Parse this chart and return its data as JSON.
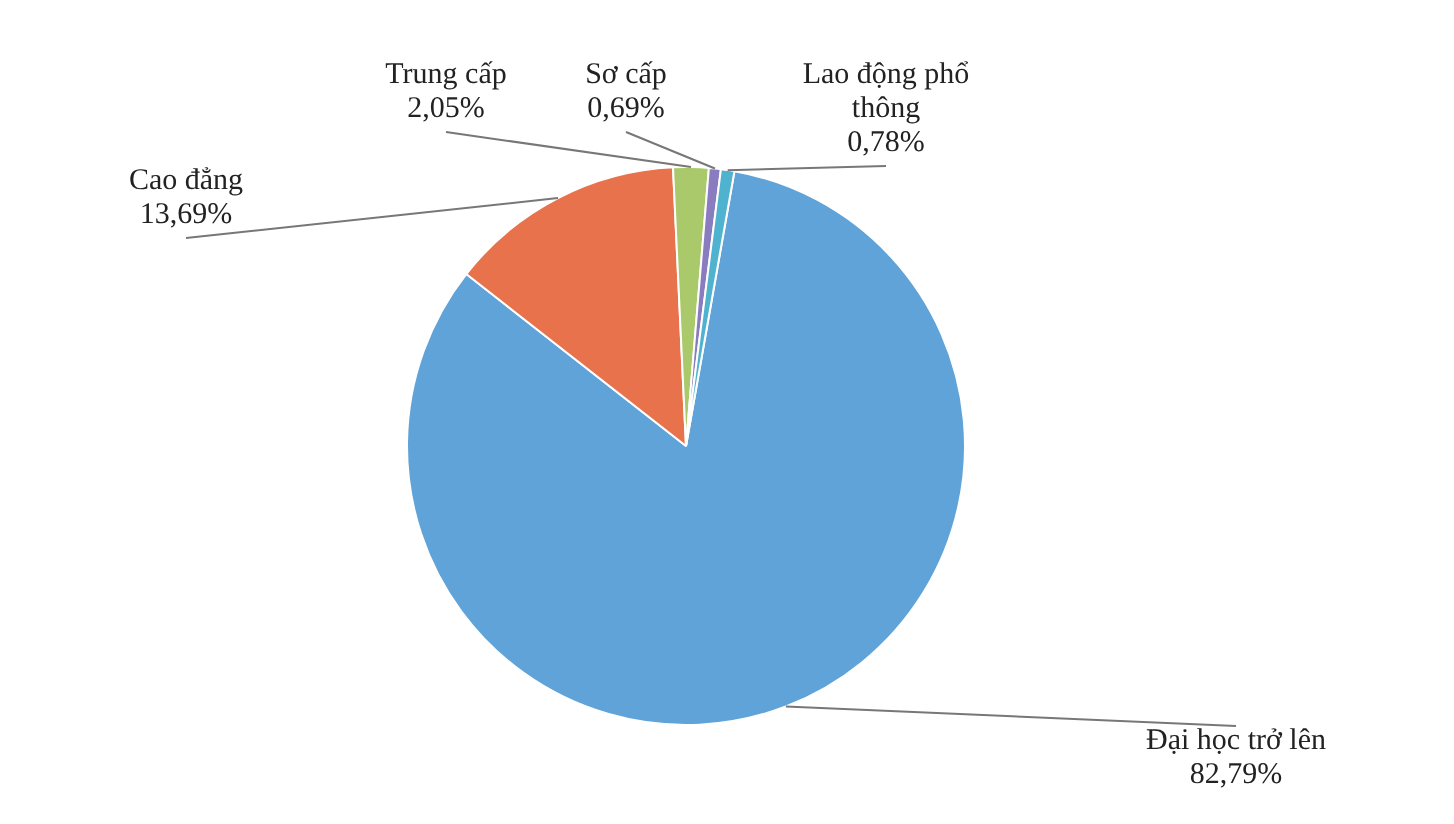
{
  "chart_data": {
    "type": "pie",
    "categories": [
      "Đại học trở lên",
      "Cao đẳng",
      "Trung cấp",
      "Sơ cấp",
      "Lao động phổ thông"
    ],
    "values": [
      82.79,
      13.69,
      2.05,
      0.69,
      0.78
    ],
    "colors": [
      "#5fa3d9",
      "#e8724c",
      "#a9c96a",
      "#8a7dbf",
      "#4fb3cf"
    ],
    "value_labels": [
      "82,79%",
      "13,69%",
      "2,05%",
      "0,69%",
      "0,78%"
    ],
    "legend": false
  }
}
